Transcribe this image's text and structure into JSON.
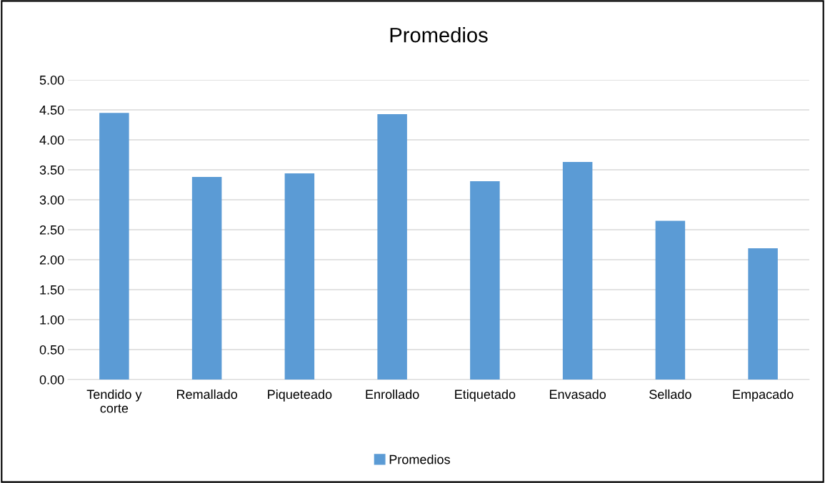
{
  "chart_data": {
    "type": "bar",
    "title": "Promedios",
    "categories": [
      "Tendido y corte",
      "Remallado",
      "Piqueteado",
      "Enrollado",
      "Etiquetado",
      "Envasado",
      "Sellado",
      "Empacado"
    ],
    "series": [
      {
        "name": "Promedios",
        "color": "#5b9bd5",
        "values": [
          4.45,
          3.38,
          3.44,
          4.43,
          3.31,
          3.63,
          2.65,
          2.19
        ]
      }
    ],
    "ylim": [
      0,
      5
    ],
    "yticks": [
      {
        "value": 0,
        "label": "0.00"
      },
      {
        "value": 0.5,
        "label": "0.50"
      },
      {
        "value": 1,
        "label": "1.00"
      },
      {
        "value": 1.5,
        "label": "1.50"
      },
      {
        "value": 2,
        "label": "2.00"
      },
      {
        "value": 2.5,
        "label": "2.50"
      },
      {
        "value": 3,
        "label": "3.00"
      },
      {
        "value": 3.5,
        "label": "3.50"
      },
      {
        "value": 4,
        "label": "4.00"
      },
      {
        "value": 4.5,
        "label": "4.50"
      },
      {
        "value": 5,
        "label": "5.00"
      }
    ],
    "grid": "y",
    "legend": "bottom"
  }
}
